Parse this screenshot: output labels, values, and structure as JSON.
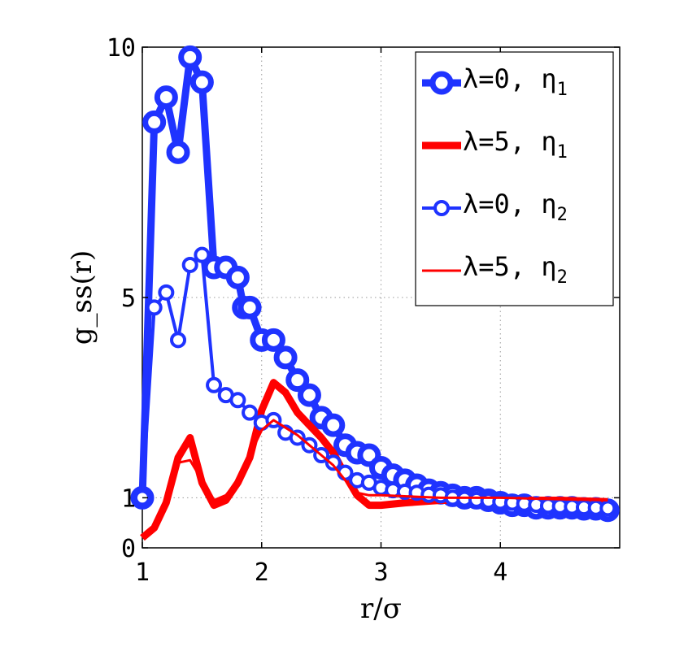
{
  "chart_data": {
    "type": "line",
    "xlabel": "r/σ",
    "ylabel": "g_ss(r)",
    "xlim": [
      1,
      5
    ],
    "ylim": [
      0,
      10
    ],
    "xticks": [
      1,
      2,
      3,
      4
    ],
    "yticks": [
      0,
      1,
      5,
      10
    ],
    "grid": true,
    "legend_position": "top-right",
    "series": [
      {
        "name": "λ=0, η1",
        "label_main": "λ=0, η",
        "label_sub": "1",
        "color": "#1f33ff",
        "style": "thick-line-circles",
        "x": [
          1.0,
          1.1,
          1.2,
          1.3,
          1.4,
          1.5,
          1.6,
          1.7,
          1.8,
          1.85,
          1.9,
          2.0,
          2.1,
          2.2,
          2.3,
          2.4,
          2.5,
          2.6,
          2.7,
          2.8,
          2.9,
          3.0,
          3.1,
          3.2,
          3.3,
          3.4,
          3.5,
          3.6,
          3.7,
          3.8,
          3.9,
          4.0,
          4.1,
          4.2,
          4.3,
          4.4,
          4.5,
          4.6,
          4.7,
          4.8,
          4.9
        ],
        "y": [
          1.0,
          8.5,
          9.0,
          7.9,
          9.8,
          9.3,
          5.6,
          5.6,
          5.4,
          4.8,
          4.8,
          4.15,
          4.15,
          3.8,
          3.35,
          3.05,
          2.6,
          2.45,
          2.05,
          1.9,
          1.85,
          1.6,
          1.45,
          1.35,
          1.25,
          1.15,
          1.1,
          1.05,
          1.0,
          1.0,
          0.95,
          0.9,
          0.85,
          0.85,
          0.8,
          0.8,
          0.8,
          0.8,
          0.78,
          0.78,
          0.75
        ]
      },
      {
        "name": "λ=5, η1",
        "label_main": "λ=5, η",
        "label_sub": "1",
        "color": "#ff0000",
        "style": "thick-line",
        "x": [
          1.0,
          1.1,
          1.2,
          1.3,
          1.4,
          1.5,
          1.6,
          1.7,
          1.8,
          1.9,
          2.0,
          2.1,
          2.2,
          2.3,
          2.4,
          2.5,
          2.6,
          2.7,
          2.8,
          2.9,
          3.0,
          3.2,
          3.5,
          4.0,
          4.5,
          4.9
        ],
        "y": [
          0.2,
          0.4,
          0.9,
          1.8,
          2.2,
          1.3,
          0.85,
          0.95,
          1.3,
          1.8,
          2.75,
          3.3,
          3.1,
          2.7,
          2.45,
          2.2,
          1.9,
          1.45,
          1.05,
          0.85,
          0.85,
          0.9,
          0.95,
          0.95,
          0.95,
          0.92
        ]
      },
      {
        "name": "λ=0, η2",
        "label_main": "λ=0, η",
        "label_sub": "2",
        "color": "#1f33ff",
        "style": "thin-line-circles",
        "x": [
          1.0,
          1.1,
          1.2,
          1.3,
          1.4,
          1.5,
          1.6,
          1.7,
          1.8,
          1.9,
          2.0,
          2.1,
          2.2,
          2.3,
          2.4,
          2.5,
          2.6,
          2.7,
          2.8,
          2.9,
          3.0,
          3.1,
          3.2,
          3.3,
          3.4,
          3.5,
          3.6,
          3.7,
          3.8,
          3.9,
          4.0,
          4.1,
          4.2,
          4.3,
          4.4,
          4.5,
          4.6,
          4.7,
          4.8,
          4.9
        ],
        "y": [
          1.0,
          4.8,
          5.1,
          4.15,
          5.65,
          5.85,
          3.25,
          3.05,
          2.95,
          2.7,
          2.5,
          2.55,
          2.3,
          2.2,
          2.05,
          1.85,
          1.7,
          1.5,
          1.35,
          1.3,
          1.2,
          1.15,
          1.12,
          1.1,
          1.06,
          1.05,
          1.0,
          0.98,
          0.96,
          0.94,
          0.92,
          0.9,
          0.88,
          0.86,
          0.84,
          0.83,
          0.82,
          0.81,
          0.8,
          0.79
        ]
      },
      {
        "name": "λ=5, η2",
        "label_main": "λ=5, η",
        "label_sub": "2",
        "color": "#ff0000",
        "style": "thin-line",
        "x": [
          1.0,
          1.1,
          1.2,
          1.3,
          1.4,
          1.5,
          1.6,
          1.7,
          1.8,
          1.9,
          2.0,
          2.1,
          2.2,
          2.3,
          2.4,
          2.5,
          2.6,
          2.7,
          2.8,
          2.9,
          3.0,
          3.5,
          4.0,
          4.5,
          4.9
        ],
        "y": [
          0.25,
          0.45,
          0.95,
          1.7,
          1.75,
          1.35,
          0.95,
          1.05,
          1.35,
          1.85,
          2.35,
          2.55,
          2.4,
          2.25,
          2.05,
          1.85,
          1.65,
          1.35,
          1.1,
          1.05,
          1.05,
          1.0,
          1.0,
          0.97,
          0.95
        ]
      }
    ]
  }
}
